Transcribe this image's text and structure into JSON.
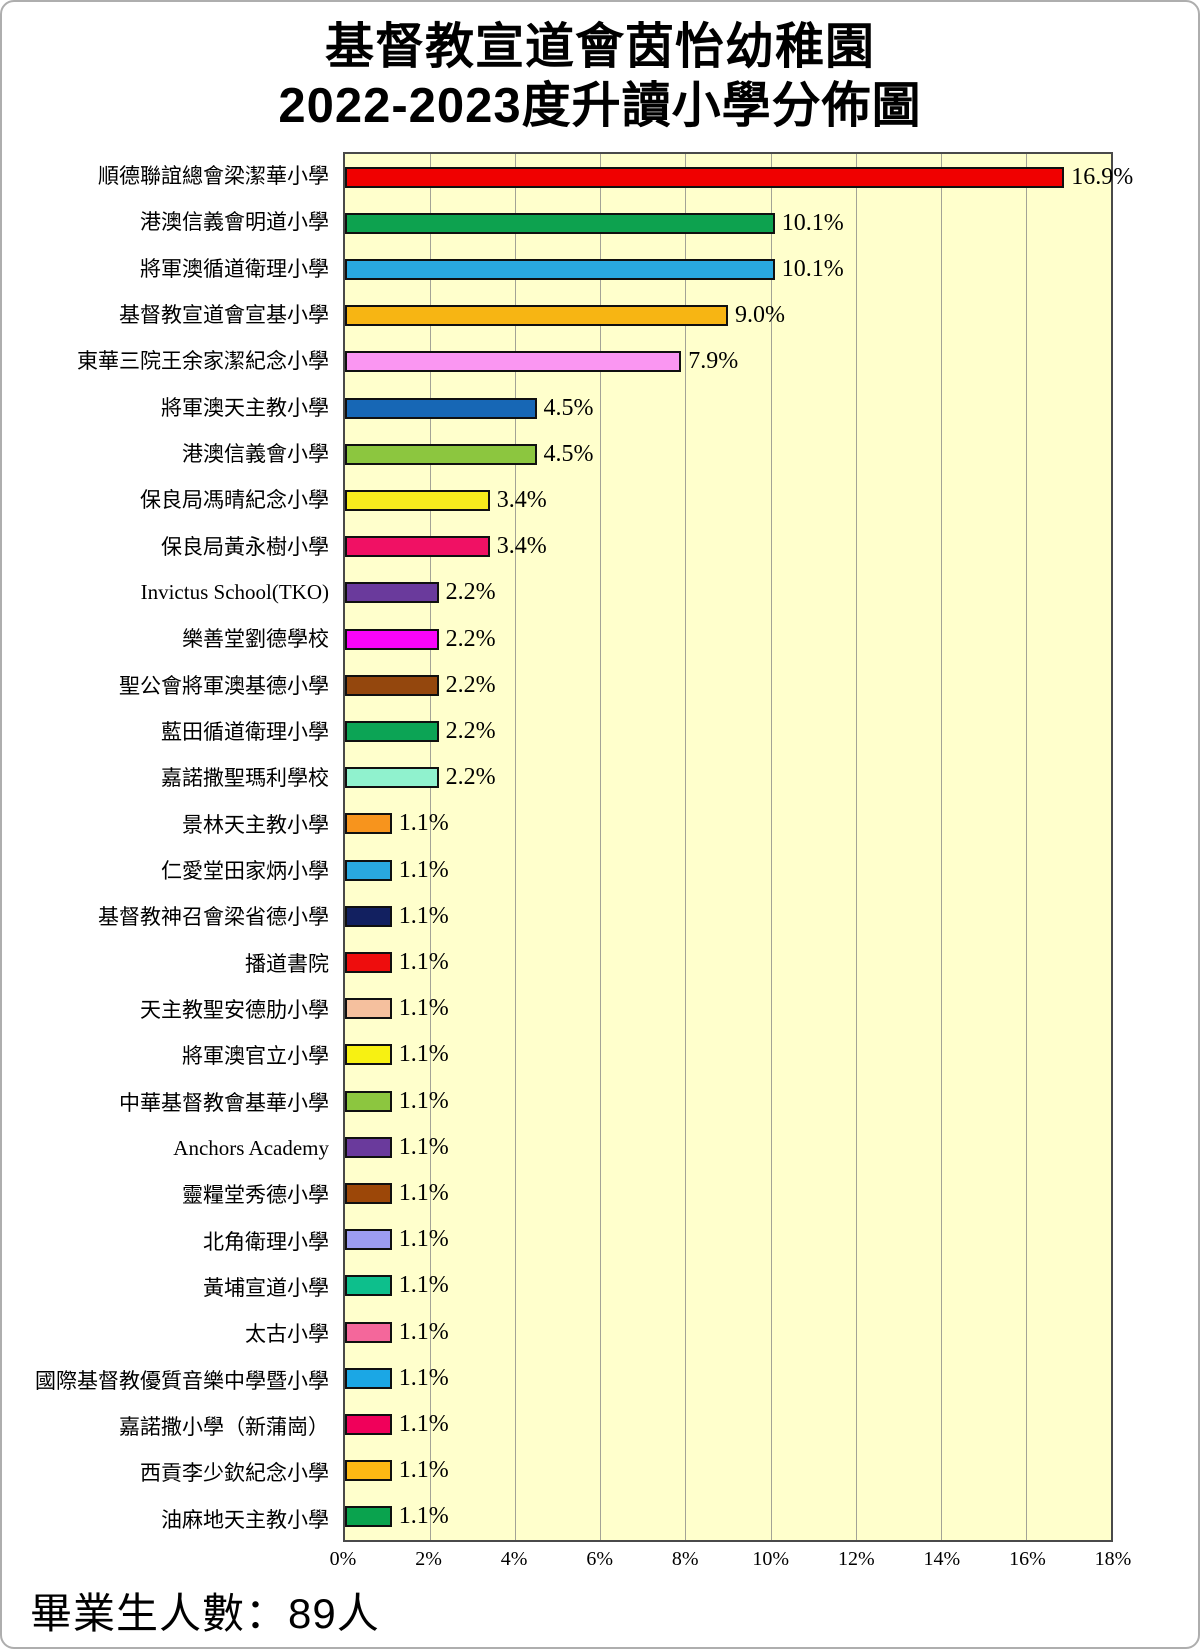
{
  "header": {
    "title_line1": "基督教宣道會茵怡幼稚園",
    "title_line2": "2022-2023度升讀小學分佈圖"
  },
  "footer": {
    "text": "畢業生人數：89人"
  },
  "chart_data": {
    "type": "bar",
    "orientation": "horizontal",
    "title": "基督教宣道會茵怡幼稚園 2022-2023度升讀小學分佈圖",
    "xlabel": "",
    "ylabel": "",
    "xlim": [
      0,
      18
    ],
    "x_tick_values": [
      0,
      2,
      4,
      6,
      8,
      10,
      12,
      14,
      16,
      18
    ],
    "x_tick_labels": [
      "0%",
      "2%",
      "4%",
      "6%",
      "8%",
      "10%",
      "12%",
      "14%",
      "16%",
      "18%"
    ],
    "grid": "vertical",
    "legend": "none",
    "plot_background": "#FFFFCC",
    "schools": [
      {
        "name": "順德聯誼總會梁潔華小學",
        "value": 16.9,
        "label": "16.9%",
        "color": "#F00000"
      },
      {
        "name": "港澳信義會明道小學",
        "value": 10.1,
        "label": "10.1%",
        "color": "#0DA24F"
      },
      {
        "name": "將軍澳循道衛理小學",
        "value": 10.1,
        "label": "10.1%",
        "color": "#29A8E0"
      },
      {
        "name": "基督教宣道會宣基小學",
        "value": 9.0,
        "label": "9.0%",
        "color": "#F7B513"
      },
      {
        "name": "東華三院王余家潔紀念小學",
        "value": 7.9,
        "label": "7.9%",
        "color": "#FA96F2"
      },
      {
        "name": "將軍澳天主教小學",
        "value": 4.5,
        "label": "4.5%",
        "color": "#1767B5"
      },
      {
        "name": "港澳信義會小學",
        "value": 4.5,
        "label": "4.5%",
        "color": "#8CC63F"
      },
      {
        "name": "保良局馮晴紀念小學",
        "value": 3.4,
        "label": "3.4%",
        "color": "#F7EC1D"
      },
      {
        "name": "保良局黃永樹小學",
        "value": 3.4,
        "label": "3.4%",
        "color": "#F01164"
      },
      {
        "name": "Invictus School(TKO)",
        "value": 2.2,
        "label": "2.2%",
        "color": "#6A3A9C"
      },
      {
        "name": "樂善堂劉德學校",
        "value": 2.2,
        "label": "2.2%",
        "color": "#F904F9"
      },
      {
        "name": "聖公會將軍澳基德小學",
        "value": 2.2,
        "label": "2.2%",
        "color": "#94470D"
      },
      {
        "name": "藍田循道衛理小學",
        "value": 2.2,
        "label": "2.2%",
        "color": "#0CA455"
      },
      {
        "name": "嘉諾撒聖瑪利學校",
        "value": 2.2,
        "label": "2.2%",
        "color": "#90F2CE"
      },
      {
        "name": "景林天主教小學",
        "value": 1.1,
        "label": "1.1%",
        "color": "#F7941D"
      },
      {
        "name": "仁愛堂田家炳小學",
        "value": 1.1,
        "label": "1.1%",
        "color": "#29A8E0"
      },
      {
        "name": "基督教神召會梁省德小學",
        "value": 1.1,
        "label": "1.1%",
        "color": "#122060"
      },
      {
        "name": "播道書院",
        "value": 1.1,
        "label": "1.1%",
        "color": "#EE0D0D"
      },
      {
        "name": "天主教聖安德肋小學",
        "value": 1.1,
        "label": "1.1%",
        "color": "#F5C09E"
      },
      {
        "name": "將軍澳官立小學",
        "value": 1.1,
        "label": "1.1%",
        "color": "#F7F112"
      },
      {
        "name": "中華基督教會基華小學",
        "value": 1.1,
        "label": "1.1%",
        "color": "#8CC63F"
      },
      {
        "name": "Anchors Academy",
        "value": 1.1,
        "label": "1.1%",
        "color": "#6A3A9C"
      },
      {
        "name": "靈糧堂秀德小學",
        "value": 1.1,
        "label": "1.1%",
        "color": "#9C4708"
      },
      {
        "name": "北角衛理小學",
        "value": 1.1,
        "label": "1.1%",
        "color": "#9C9CF2"
      },
      {
        "name": "黃埔宣道小學",
        "value": 1.1,
        "label": "1.1%",
        "color": "#0DBF8C"
      },
      {
        "name": "太古小學",
        "value": 1.1,
        "label": "1.1%",
        "color": "#F4679B"
      },
      {
        "name": "國際基督教優質音樂中學暨小學",
        "value": 1.1,
        "label": "1.1%",
        "color": "#1BA7E5"
      },
      {
        "name": "嘉諾撒小學（新蒲崗）",
        "value": 1.1,
        "label": "1.1%",
        "color": "#F0005A"
      },
      {
        "name": "西貢李少欽紀念小學",
        "value": 1.1,
        "label": "1.1%",
        "color": "#FDB813"
      },
      {
        "name": "油麻地天主教小學",
        "value": 1.1,
        "label": "1.1%",
        "color": "#0AA34E"
      }
    ]
  }
}
